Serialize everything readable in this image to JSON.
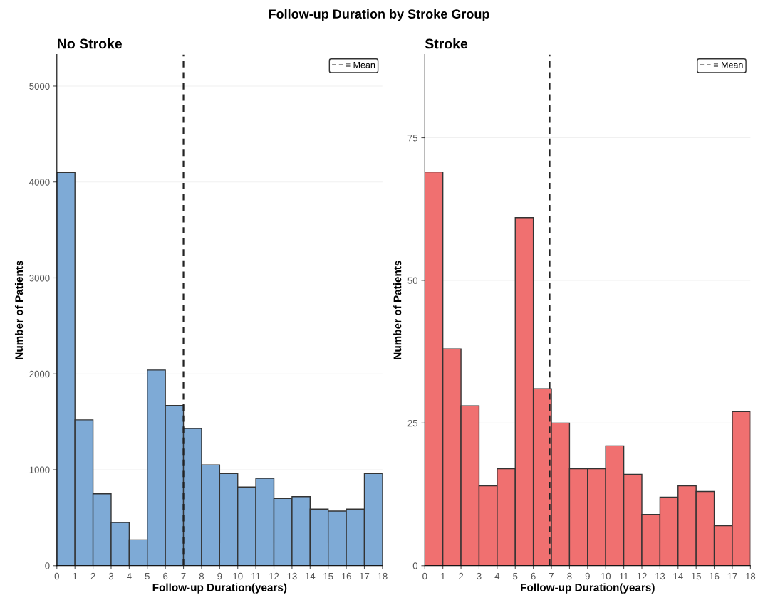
{
  "chart_data": [
    {
      "type": "histogram",
      "title": "No Stroke",
      "annotations": [
        "Follow-up Duration by Stroke Group"
      ],
      "xlabel": "Follow-up Duration(years)",
      "ylabel": "Number of Patients",
      "bins": [
        0,
        1,
        2,
        3,
        4,
        5,
        6,
        7,
        8,
        9,
        10,
        11,
        12,
        13,
        14,
        15,
        16,
        17,
        18
      ],
      "values": [
        4100,
        1520,
        750,
        450,
        270,
        2040,
        1670,
        1430,
        1050,
        960,
        820,
        910,
        700,
        720,
        590,
        570,
        590,
        960
      ],
      "color": "#7eaad6",
      "xlim": [
        0,
        18
      ],
      "xticks": [
        0,
        1,
        2,
        3,
        4,
        5,
        6,
        7,
        8,
        9,
        10,
        11,
        12,
        13,
        14,
        15,
        16,
        17,
        18
      ],
      "ylim": [
        0,
        5330
      ],
      "yticks": [
        0,
        1000,
        2000,
        3000,
        4000,
        5000
      ],
      "grid": "y",
      "legend": "top right",
      "ref_lines": [
        {
          "axis": "x",
          "value": 7.0,
          "label": "= Mean",
          "color": "#222222",
          "line_style": "dashed"
        }
      ]
    },
    {
      "type": "histogram",
      "title": "Stroke",
      "xlabel": "Follow-up Duration(years)",
      "ylabel": "Number of Patients",
      "bins": [
        0,
        1,
        2,
        3,
        4,
        5,
        6,
        7,
        8,
        9,
        10,
        11,
        12,
        13,
        14,
        15,
        16,
        17,
        18
      ],
      "values": [
        69,
        38,
        28,
        14,
        17,
        61,
        31,
        25,
        17,
        17,
        21,
        16,
        9,
        12,
        14,
        13,
        7,
        27
      ],
      "color": "#f07070",
      "xlim": [
        0,
        18
      ],
      "xticks": [
        0,
        1,
        2,
        3,
        4,
        5,
        6,
        7,
        8,
        9,
        10,
        11,
        12,
        13,
        14,
        15,
        16,
        17,
        18
      ],
      "ylim": [
        0,
        89.6
      ],
      "yticks": [
        0,
        25,
        50,
        75
      ],
      "grid": "y",
      "legend": "top right",
      "ref_lines": [
        {
          "axis": "x",
          "value": 6.9,
          "label": "= Mean",
          "color": "#222222",
          "line_style": "dashed"
        }
      ]
    }
  ]
}
